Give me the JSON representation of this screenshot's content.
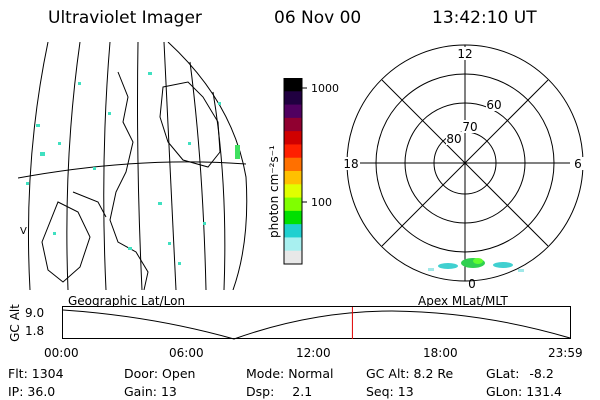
{
  "header": {
    "instrument": "Ultraviolet Imager",
    "date": "06 Nov 00",
    "time": "13:42:10 UT"
  },
  "map_panel": {
    "edge_label": "V"
  },
  "colorbar": {
    "label": "photon cm⁻²s⁻¹",
    "tick_1000": "1000",
    "tick_100": "100",
    "colors": [
      "#e8e8e8",
      "#a8f0f0",
      "#20d0d0",
      "#00e000",
      "#80ff00",
      "#e0ff00",
      "#ffc000",
      "#ff7000",
      "#ff2000",
      "#d00000",
      "#900030",
      "#500060",
      "#200040",
      "#000000"
    ]
  },
  "polar_plot": {
    "mlt_labels": {
      "top": "12",
      "left": "18",
      "right": "6",
      "bottom": "0"
    },
    "lat_labels": [
      "60",
      "70",
      "80"
    ]
  },
  "altitude_plot": {
    "left_caption": "Geographic Lat/Lon",
    "right_caption": "Apex MLat/MLT",
    "y_axis_label": "GC Alt",
    "y_ticks": [
      "9.0",
      "1.8"
    ],
    "x_ticks": [
      "00:00",
      "06:00",
      "12:00",
      "18:00",
      "23:59"
    ],
    "current_time_hours": 13.7,
    "marker_color": "#e00000"
  },
  "info": {
    "flt_label": "Flt:",
    "flt_value": "1304",
    "door_label": "Door:",
    "door_value": "Open",
    "mode_label": "Mode:",
    "mode_value": "Normal",
    "gcalt_label": "GC Alt:",
    "gcalt_value": "8.2 Re",
    "glat_label": "GLat:",
    "glat_value": "-8.2",
    "ip_label": "IP:",
    "ip_value": "36.0",
    "gain_label": "Gain:",
    "gain_value": "13",
    "dsp_label": "Dsp:",
    "dsp_value": "2.1",
    "seq_label": "Seq:",
    "seq_value": "13",
    "glon_label": "GLon:",
    "glon_value": "131.4"
  }
}
